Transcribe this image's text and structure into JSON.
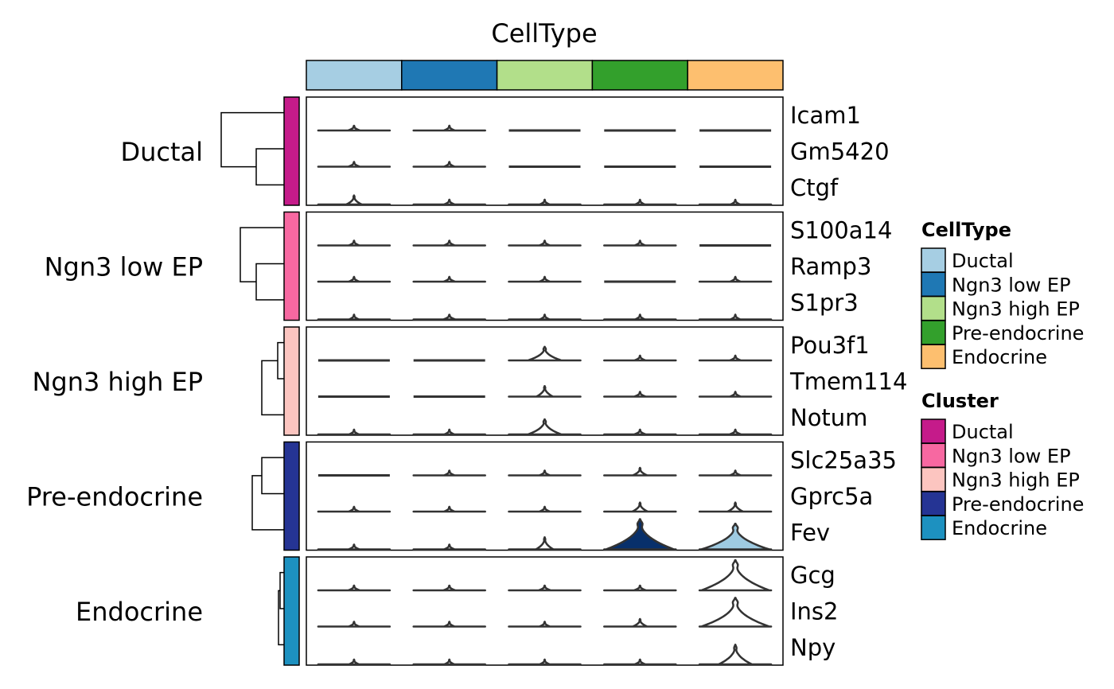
{
  "chart_data": {
    "type": "violin-heatmap",
    "title": "CellType",
    "columns": [
      {
        "name": "Ductal",
        "color": "#A6CEE3"
      },
      {
        "name": "Ngn3 low EP",
        "color": "#1F78B4"
      },
      {
        "name": "Ngn3 high EP",
        "color": "#B2DF8A"
      },
      {
        "name": "Pre-endocrine",
        "color": "#33A02C"
      },
      {
        "name": "Endocrine",
        "color": "#FDBF6F"
      }
    ],
    "clusters": [
      {
        "name": "Ductal",
        "color": "#C51B8A",
        "genes": [
          "Icam1",
          "Gm5420",
          "Ctgf"
        ]
      },
      {
        "name": "Ngn3 low EP",
        "color": "#F768A1",
        "genes": [
          "S100a14",
          "Ramp3",
          "S1pr3"
        ]
      },
      {
        "name": "Ngn3 high EP",
        "color": "#FCC5C0",
        "genes": [
          "Pou3f1",
          "Tmem114",
          "Notum"
        ]
      },
      {
        "name": "Pre-endocrine",
        "color": "#253494",
        "genes": [
          "Slc25a35",
          "Gprc5a",
          "Fev"
        ]
      },
      {
        "name": "Endocrine",
        "color": "#1D91C0",
        "genes": [
          "Gcg",
          "Ins2",
          "Npy"
        ]
      }
    ],
    "expression": [
      [
        0.15,
        0.1,
        0.0,
        0.0,
        0.0
      ],
      [
        0.12,
        0.08,
        0.0,
        0.0,
        0.0
      ],
      [
        0.3,
        0.08,
        0.05,
        0.03,
        0.03
      ],
      [
        0.08,
        0.1,
        0.08,
        0.08,
        0.0
      ],
      [
        0.08,
        0.12,
        0.08,
        0.0,
        0.08
      ],
      [
        0.05,
        0.15,
        0.05,
        0.05,
        0.05
      ],
      [
        0.0,
        0.0,
        0.45,
        0.1,
        0.1
      ],
      [
        0.0,
        0.0,
        0.35,
        0.12,
        0.1
      ],
      [
        0.05,
        0.05,
        0.5,
        0.12,
        0.12
      ],
      [
        0.0,
        0.08,
        0.08,
        0.25,
        0.1
      ],
      [
        0.08,
        0.08,
        0.08,
        0.3,
        0.3
      ],
      [
        0.1,
        0.08,
        0.4,
        1.0,
        0.85
      ],
      [
        0.12,
        0.15,
        0.15,
        0.15,
        1.0
      ],
      [
        0.08,
        0.08,
        0.08,
        0.25,
        0.95
      ],
      [
        0.05,
        0.05,
        0.05,
        0.08,
        0.65
      ]
    ],
    "violin_fill": {
      "Fev|Pre-endocrine": "#08306B",
      "Fev|Endocrine": "#9ECAE1"
    },
    "legends": [
      {
        "title": "CellType",
        "items": [
          "Ductal",
          "Ngn3 low EP",
          "Ngn3 high EP",
          "Pre-endocrine",
          "Endocrine"
        ],
        "colors": [
          "#A6CEE3",
          "#1F78B4",
          "#B2DF8A",
          "#33A02C",
          "#FDBF6F"
        ]
      },
      {
        "title": "Cluster",
        "items": [
          "Ductal",
          "Ngn3 low EP",
          "Ngn3 high EP",
          "Pre-endocrine",
          "Endocrine"
        ],
        "colors": [
          "#C51B8A",
          "#F768A1",
          "#FCC5C0",
          "#253494",
          "#1D91C0"
        ]
      }
    ],
    "legend_position": "right",
    "grid": false
  }
}
